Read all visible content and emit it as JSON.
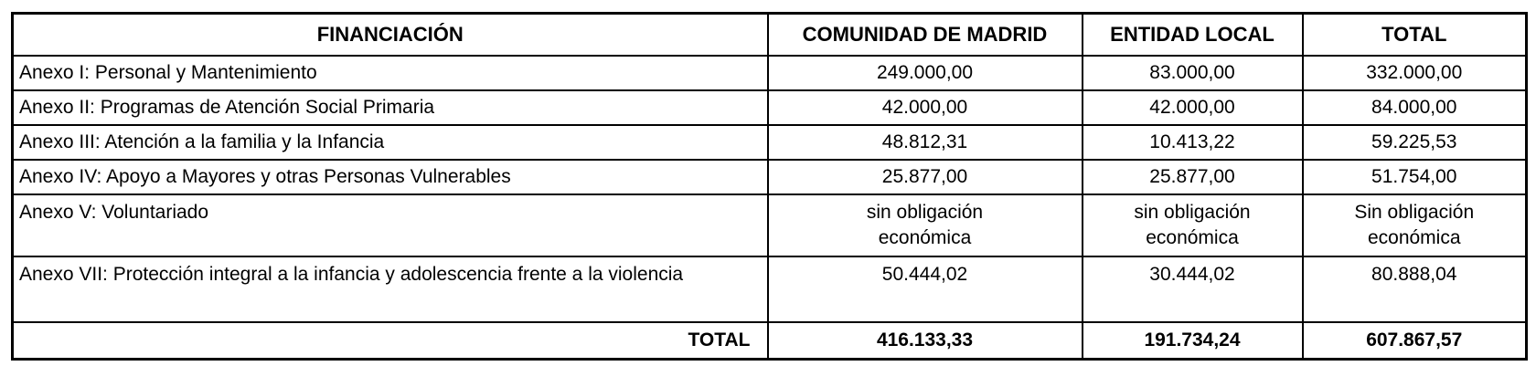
{
  "table": {
    "headers": {
      "financiacion": "FINANCIACIÓN",
      "madrid": "COMUNIDAD DE MADRID",
      "local": "ENTIDAD LOCAL",
      "total": "TOTAL"
    },
    "rows": [
      {
        "label": "Anexo I: Personal y Mantenimiento",
        "madrid": "249.000,00",
        "local": "83.000,00",
        "total": "332.000,00"
      },
      {
        "label": "Anexo II: Programas de Atención Social Primaria",
        "madrid": "42.000,00",
        "local": "42.000,00",
        "total": "84.000,00"
      },
      {
        "label": "Anexo III: Atención a la familia y la Infancia",
        "madrid": "48.812,31",
        "local": "10.413,22",
        "total": "59.225,53"
      },
      {
        "label": "Anexo IV: Apoyo a Mayores y otras Personas Vulnerables",
        "madrid": "25.877,00",
        "local": "25.877,00",
        "total": "51.754,00"
      },
      {
        "label": "Anexo V: Voluntariado",
        "madrid": "sin obligación\neconómica",
        "local": "sin obligación\neconómica",
        "total": "Sin obligación\neconómica"
      },
      {
        "label": "Anexo VII: Protección integral a la infancia y adolescencia frente a la violencia",
        "madrid": "50.444,02",
        "local": "30.444,02",
        "total": "80.888,04"
      }
    ],
    "footer": {
      "label": "TOTAL",
      "madrid": "416.133,33",
      "local": "191.734,24",
      "total": "607.867,57"
    }
  },
  "colors": {
    "border": "#000000",
    "text": "#000000",
    "background": "#ffffff"
  }
}
